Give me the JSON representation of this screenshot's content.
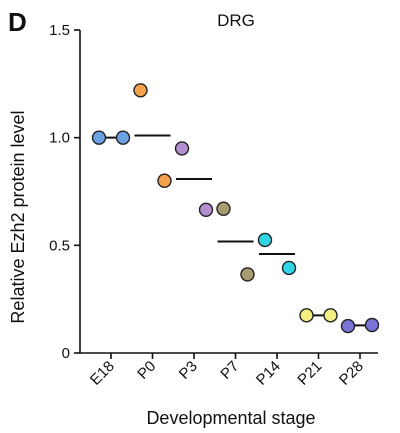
{
  "panel_label": "D",
  "chart_data": {
    "type": "scatter",
    "title": "DRG",
    "xlabel": "Developmental stage",
    "ylabel": "Relative Ezh2 protein level",
    "ylim": [
      0,
      1.5
    ],
    "yticks": [
      "0",
      "0.5",
      "1.0",
      "1.5"
    ],
    "categories": [
      "E18",
      "P0",
      "P3",
      "P7",
      "P14",
      "P21",
      "P28"
    ],
    "points": [
      [
        1.0,
        1.0
      ],
      [
        1.22,
        0.8
      ],
      [
        0.95,
        0.665
      ],
      [
        0.67,
        0.365
      ],
      [
        0.525,
        0.395
      ],
      [
        0.175,
        0.175
      ],
      [
        0.125,
        0.13
      ]
    ],
    "means": [
      1.0,
      1.01,
      0.808,
      0.518,
      0.46,
      0.175,
      0.128
    ],
    "colors": [
      "#6ba3e3",
      "#f5a04a",
      "#b38fcf",
      "#a89c72",
      "#2fd6e6",
      "#f5ee82",
      "#7a74d6"
    ],
    "grid": false,
    "legend": false
  }
}
